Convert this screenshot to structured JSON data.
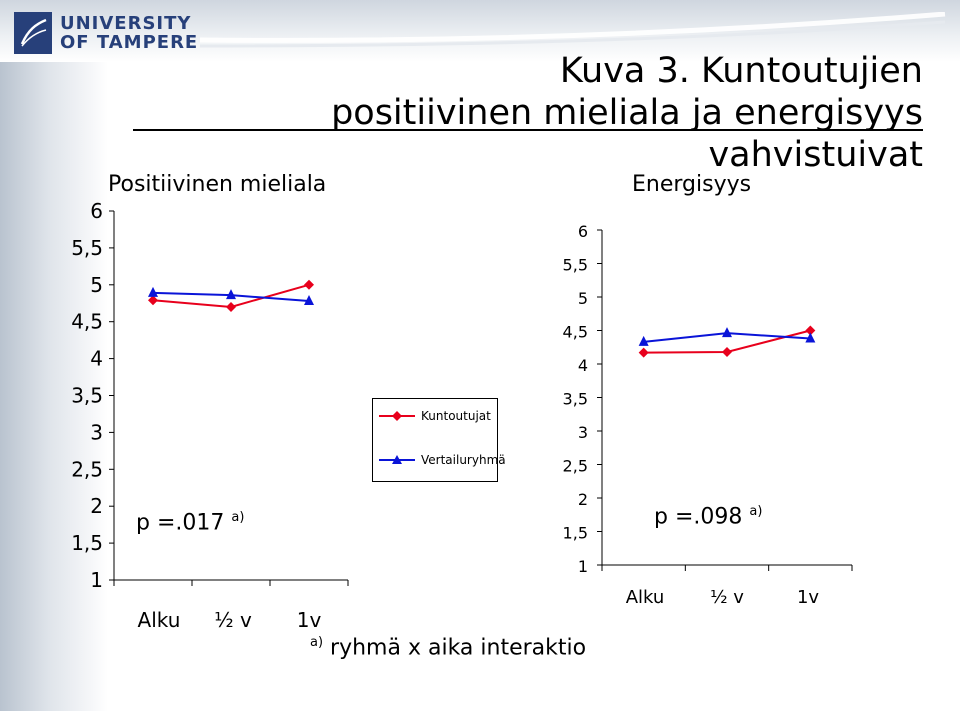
{
  "header": {
    "logo_line1": "UNIVERSITY",
    "logo_line2": "OF TAMPERE",
    "title_line1": "Kuva 3. Kuntoutujien",
    "title_line2": "positiivinen mieliala ja energisyys vahvistuivat"
  },
  "colors": {
    "series1": "#e8001c",
    "series2": "#0a14d8",
    "brand": "#27407a"
  },
  "legend": {
    "items": [
      "Kuntoutujat",
      "Vertailuryhmä"
    ]
  },
  "footnote": {
    "marker": "a)",
    "text": "ryhmä x aika interaktio"
  },
  "chart_data": [
    {
      "type": "line",
      "title": "Positiivinen mieliala",
      "categories": [
        "Alku",
        "½ v",
        "1v"
      ],
      "ylim": [
        1,
        6
      ],
      "yticks": [
        "6",
        "5,5",
        "5",
        "4,5",
        "4",
        "3,5",
        "3",
        "2,5",
        "2",
        "1,5",
        "1"
      ],
      "series": [
        {
          "name": "Kuntoutujat",
          "values": [
            4.79,
            4.7,
            5.0
          ]
        },
        {
          "name": "Vertailuryhmä",
          "values": [
            4.89,
            4.86,
            4.78
          ]
        }
      ],
      "annotation": {
        "text": "p =.017",
        "sup": "a)"
      },
      "grid": false
    },
    {
      "type": "line",
      "title": "Energisyys",
      "categories": [
        "Alku",
        "½ v",
        "1v"
      ],
      "ylim": [
        1,
        6
      ],
      "yticks": [
        "6",
        "5,5",
        "5",
        "4,5",
        "4",
        "3,5",
        "3",
        "2,5",
        "2",
        "1,5",
        "1"
      ],
      "series": [
        {
          "name": "Kuntoutujat",
          "values": [
            4.17,
            4.18,
            4.5
          ]
        },
        {
          "name": "Vertailuryhmä",
          "values": [
            4.33,
            4.46,
            4.38
          ]
        }
      ],
      "annotation": {
        "text": "p =.098",
        "sup": "a)"
      },
      "grid": false
    }
  ]
}
